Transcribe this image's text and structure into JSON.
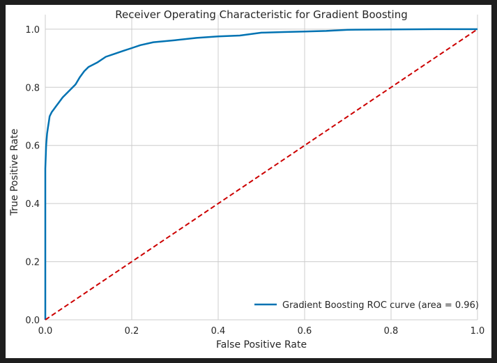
{
  "chart_data": {
    "type": "line",
    "title": "Receiver Operating Characteristic for Gradient Boosting",
    "xlabel": "False Positive Rate",
    "ylabel": "True Positive Rate",
    "xlim": [
      0.0,
      1.0
    ],
    "ylim": [
      0.0,
      1.05
    ],
    "xticks": [
      0.0,
      0.2,
      0.4,
      0.6,
      0.8,
      1.0
    ],
    "yticks": [
      0.0,
      0.2,
      0.4,
      0.6,
      0.8,
      1.0
    ],
    "xtick_labels": [
      "0.0",
      "0.2",
      "0.4",
      "0.6",
      "0.8",
      "1.0"
    ],
    "ytick_labels": [
      "0.0",
      "0.2",
      "0.4",
      "0.6",
      "0.8",
      "1.0"
    ],
    "grid": true,
    "legend_position": "lower-right",
    "series": [
      {
        "name": "Gradient Boosting ROC curve (area = 0.96)",
        "style": "solid",
        "color": "#0072B2",
        "x": [
          0.0,
          0.0,
          0.002,
          0.004,
          0.006,
          0.008,
          0.01,
          0.015,
          0.02,
          0.025,
          0.03,
          0.04,
          0.05,
          0.06,
          0.07,
          0.08,
          0.09,
          0.1,
          0.12,
          0.14,
          0.16,
          0.18,
          0.2,
          0.22,
          0.25,
          0.3,
          0.35,
          0.4,
          0.45,
          0.5,
          0.55,
          0.6,
          0.65,
          0.7,
          0.8,
          0.9,
          1.0
        ],
        "y": [
          0.0,
          0.52,
          0.6,
          0.64,
          0.66,
          0.68,
          0.7,
          0.715,
          0.725,
          0.735,
          0.745,
          0.765,
          0.78,
          0.795,
          0.81,
          0.835,
          0.855,
          0.87,
          0.885,
          0.905,
          0.915,
          0.925,
          0.935,
          0.945,
          0.955,
          0.962,
          0.97,
          0.975,
          0.978,
          0.988,
          0.99,
          0.992,
          0.994,
          0.998,
          0.999,
          1.0,
          1.0
        ]
      },
      {
        "name": "",
        "style": "dashed",
        "color": "#CC0000",
        "x": [
          0.0,
          1.0
        ],
        "y": [
          0.0,
          1.0
        ]
      }
    ]
  }
}
